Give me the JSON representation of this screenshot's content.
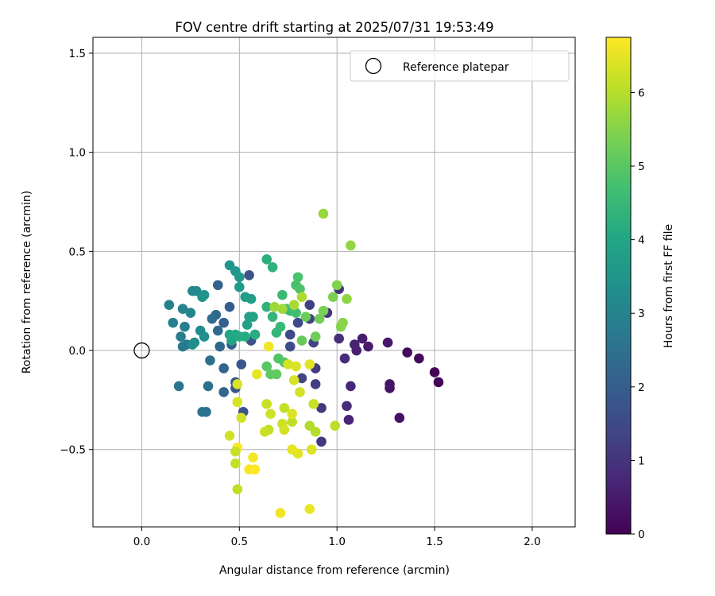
{
  "chart_data": {
    "type": "scatter",
    "title": "FOV centre drift starting at 2025/07/31 19:53:49",
    "xlabel": "Angular distance from reference (arcmin)",
    "ylabel": "Rotation from reference (arcmin)",
    "xlim": [
      -0.25,
      2.22
    ],
    "ylim": [
      -0.89,
      1.58
    ],
    "xticks": [
      0.0,
      0.5,
      1.0,
      1.5,
      2.0
    ],
    "xtick_labels": [
      "0.0",
      "0.5",
      "1.0",
      "1.5",
      "2.0"
    ],
    "yticks": [
      -0.5,
      0.0,
      0.5,
      1.0,
      1.5
    ],
    "ytick_labels": [
      "−0.5",
      "0.0",
      "0.5",
      "1.0",
      "1.5"
    ],
    "grid": true,
    "legend": {
      "placement": "top-right",
      "entries": [
        "Reference platepar"
      ]
    },
    "reference_point": {
      "x": 0.0,
      "y": 0.0
    },
    "colorbar": {
      "label": "Hours from first FF file",
      "range": [
        0,
        6.75
      ],
      "ticks": [
        0,
        1,
        2,
        3,
        4,
        5,
        6
      ],
      "tick_labels": [
        "0",
        "1",
        "2",
        "3",
        "4",
        "5",
        "6"
      ],
      "colormap": "viridis"
    },
    "points": [
      [
        1.52,
        -0.16,
        0.05
      ],
      [
        1.5,
        -0.11,
        0.1
      ],
      [
        1.42,
        -0.04,
        0.15
      ],
      [
        1.36,
        -0.01,
        0.2
      ],
      [
        1.32,
        -0.34,
        0.3
      ],
      [
        1.27,
        -0.19,
        0.35
      ],
      [
        1.27,
        -0.17,
        0.4
      ],
      [
        1.26,
        0.04,
        0.45
      ],
      [
        1.16,
        0.02,
        0.5
      ],
      [
        1.13,
        0.06,
        0.55
      ],
      [
        1.1,
        0.0,
        0.6
      ],
      [
        1.09,
        0.03,
        0.65
      ],
      [
        1.06,
        -0.35,
        0.7
      ],
      [
        1.07,
        -0.18,
        0.75
      ],
      [
        1.05,
        -0.28,
        0.8
      ],
      [
        1.04,
        -0.04,
        0.85
      ],
      [
        1.01,
        0.06,
        0.9
      ],
      [
        1.01,
        0.31,
        0.95
      ],
      [
        0.95,
        0.19,
        1.0
      ],
      [
        0.92,
        -0.46,
        1.05
      ],
      [
        0.92,
        -0.29,
        1.1
      ],
      [
        0.89,
        -0.09,
        1.15
      ],
      [
        0.89,
        -0.17,
        1.2
      ],
      [
        0.86,
        0.23,
        1.25
      ],
      [
        0.86,
        0.16,
        1.3
      ],
      [
        0.88,
        0.04,
        1.35
      ],
      [
        0.82,
        -0.14,
        1.4
      ],
      [
        0.8,
        0.14,
        1.45
      ],
      [
        0.76,
        0.08,
        1.5
      ],
      [
        0.76,
        0.02,
        1.55
      ],
      [
        0.58,
        0.08,
        1.6
      ],
      [
        0.56,
        0.05,
        1.65
      ],
      [
        0.55,
        0.38,
        1.7
      ],
      [
        0.52,
        -0.31,
        1.75
      ],
      [
        0.51,
        -0.07,
        1.8
      ],
      [
        0.48,
        -0.19,
        1.85
      ],
      [
        0.48,
        -0.16,
        1.9
      ],
      [
        0.46,
        0.03,
        1.95
      ],
      [
        0.45,
        0.22,
        2.0
      ],
      [
        0.42,
        0.14,
        2.05
      ],
      [
        0.39,
        0.33,
        2.1
      ],
      [
        0.42,
        -0.09,
        2.15
      ],
      [
        0.42,
        -0.21,
        2.2
      ],
      [
        0.4,
        0.02,
        2.25
      ],
      [
        0.39,
        0.1,
        2.3
      ],
      [
        0.38,
        0.18,
        2.35
      ],
      [
        0.36,
        0.16,
        2.4
      ],
      [
        0.35,
        -0.05,
        2.45
      ],
      [
        0.34,
        -0.18,
        2.5
      ],
      [
        0.33,
        -0.31,
        2.55
      ],
      [
        0.31,
        -0.31,
        2.6
      ],
      [
        0.19,
        -0.18,
        2.65
      ],
      [
        0.21,
        0.02,
        2.7
      ],
      [
        0.23,
        0.03,
        2.75
      ],
      [
        0.2,
        0.07,
        2.8
      ],
      [
        0.22,
        0.12,
        2.85
      ],
      [
        0.16,
        0.14,
        2.9
      ],
      [
        0.14,
        0.23,
        2.95
      ],
      [
        0.21,
        0.21,
        3.0
      ],
      [
        0.25,
        0.19,
        3.05
      ],
      [
        0.26,
        0.3,
        3.1
      ],
      [
        0.28,
        0.3,
        3.15
      ],
      [
        0.3,
        0.1,
        3.2
      ],
      [
        0.27,
        0.04,
        3.25
      ],
      [
        0.26,
        0.03,
        3.3
      ],
      [
        0.32,
        0.07,
        3.35
      ],
      [
        0.31,
        0.27,
        3.4
      ],
      [
        0.32,
        0.28,
        3.45
      ],
      [
        0.45,
        0.43,
        3.5
      ],
      [
        0.48,
        0.4,
        3.55
      ],
      [
        0.5,
        0.37,
        3.6
      ],
      [
        0.5,
        0.32,
        3.65
      ],
      [
        0.53,
        0.27,
        3.7
      ],
      [
        0.56,
        0.26,
        3.75
      ],
      [
        0.54,
        0.13,
        3.8
      ],
      [
        0.55,
        0.17,
        3.85
      ],
      [
        0.57,
        0.17,
        3.9
      ],
      [
        0.46,
        0.05,
        3.95
      ],
      [
        0.45,
        0.08,
        4.0
      ],
      [
        0.48,
        0.08,
        4.05
      ],
      [
        0.5,
        0.07,
        4.1
      ],
      [
        0.53,
        0.07,
        4.15
      ],
      [
        0.58,
        0.08,
        4.2
      ],
      [
        0.64,
        0.46,
        4.25
      ],
      [
        0.67,
        0.42,
        4.3
      ],
      [
        0.64,
        0.22,
        4.35
      ],
      [
        0.67,
        0.17,
        4.4
      ],
      [
        0.69,
        0.09,
        4.45
      ],
      [
        0.71,
        0.12,
        4.5
      ],
      [
        0.72,
        0.28,
        4.55
      ],
      [
        0.74,
        0.21,
        4.6
      ],
      [
        0.76,
        0.2,
        4.65
      ],
      [
        0.79,
        0.19,
        4.7
      ],
      [
        0.79,
        0.33,
        4.75
      ],
      [
        0.8,
        0.37,
        4.8
      ],
      [
        0.81,
        0.31,
        4.85
      ],
      [
        0.7,
        -0.04,
        4.9
      ],
      [
        0.73,
        -0.06,
        4.95
      ],
      [
        0.64,
        -0.08,
        5.0
      ],
      [
        0.66,
        -0.12,
        5.05
      ],
      [
        0.69,
        -0.12,
        5.1
      ],
      [
        0.82,
        0.05,
        5.15
      ],
      [
        0.84,
        0.17,
        5.2
      ],
      [
        0.89,
        0.07,
        5.25
      ],
      [
        0.91,
        0.16,
        5.3
      ],
      [
        0.93,
        0.2,
        5.35
      ],
      [
        0.98,
        0.27,
        5.4
      ],
      [
        1.0,
        0.33,
        5.45
      ],
      [
        1.02,
        0.12,
        5.5
      ],
      [
        1.03,
        0.14,
        5.55
      ],
      [
        1.05,
        0.26,
        5.6
      ],
      [
        1.07,
        0.53,
        5.65
      ],
      [
        0.93,
        0.69,
        5.7
      ],
      [
        0.68,
        0.22,
        5.75
      ],
      [
        0.72,
        0.21,
        5.8
      ],
      [
        0.78,
        0.23,
        5.85
      ],
      [
        0.82,
        0.27,
        5.9
      ],
      [
        0.86,
        -0.38,
        5.95
      ],
      [
        0.89,
        -0.41,
        6.0
      ],
      [
        0.99,
        -0.38,
        6.05
      ],
      [
        0.77,
        -0.36,
        6.1
      ],
      [
        0.73,
        -0.29,
        6.15
      ],
      [
        0.64,
        -0.27,
        6.2
      ],
      [
        0.66,
        -0.32,
        6.25
      ],
      [
        0.81,
        -0.21,
        6.3
      ],
      [
        0.78,
        -0.15,
        6.35
      ],
      [
        0.87,
        -0.5,
        6.4
      ],
      [
        0.8,
        -0.52,
        6.45
      ],
      [
        0.77,
        -0.5,
        6.5
      ],
      [
        0.86,
        -0.8,
        6.55
      ],
      [
        0.71,
        -0.82,
        6.6
      ],
      [
        0.57,
        -0.54,
        6.65
      ],
      [
        0.55,
        -0.6,
        6.7
      ],
      [
        0.58,
        -0.6,
        6.75
      ],
      [
        0.49,
        -0.49,
        6.8
      ]
    ],
    "late_points": [
      [
        0.49,
        -0.7,
        6.1
      ],
      [
        0.48,
        -0.57,
        6.15
      ],
      [
        0.48,
        -0.51,
        6.2
      ],
      [
        0.45,
        -0.43,
        6.25
      ],
      [
        0.51,
        -0.34,
        6.3
      ],
      [
        0.49,
        -0.26,
        6.35
      ],
      [
        0.49,
        -0.17,
        6.4
      ],
      [
        0.65,
        -0.4,
        6.15
      ],
      [
        0.63,
        -0.41,
        6.2
      ],
      [
        0.72,
        -0.37,
        6.25
      ],
      [
        0.73,
        -0.4,
        6.3
      ],
      [
        0.75,
        -0.07,
        6.35
      ],
      [
        0.79,
        -0.08,
        6.4
      ],
      [
        0.86,
        -0.07,
        6.45
      ],
      [
        0.88,
        -0.27,
        6.2
      ],
      [
        0.59,
        -0.12,
        6.5
      ],
      [
        0.65,
        0.02,
        6.6
      ],
      [
        0.77,
        -0.32,
        6.4
      ]
    ]
  }
}
